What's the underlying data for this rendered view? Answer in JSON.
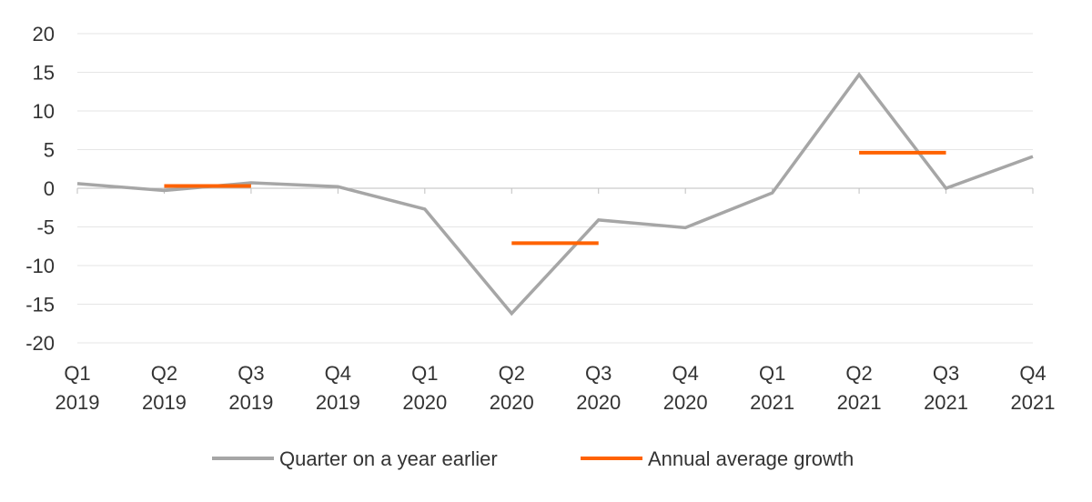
{
  "chart_data": {
    "type": "line",
    "categories": [
      [
        "Q1",
        "2019"
      ],
      [
        "Q2",
        "2019"
      ],
      [
        "Q3",
        "2019"
      ],
      [
        "Q4",
        "2019"
      ],
      [
        "Q1",
        "2020"
      ],
      [
        "Q2",
        "2020"
      ],
      [
        "Q3",
        "2020"
      ],
      [
        "Q4",
        "2020"
      ],
      [
        "Q1",
        "2021"
      ],
      [
        "Q2",
        "2021"
      ],
      [
        "Q3",
        "2021"
      ],
      [
        "Q4",
        "2021"
      ]
    ],
    "ylim": [
      -20,
      20
    ],
    "yticks": [
      -20,
      -15,
      -10,
      -5,
      0,
      5,
      10,
      15,
      20
    ],
    "grid": true,
    "legend_position": "bottom",
    "series": [
      {
        "name": "Quarter on a year earlier",
        "kind": "line",
        "color": "#a6a6a6",
        "values": [
          0.6,
          -0.3,
          0.7,
          0.2,
          -2.7,
          -16.2,
          -4.1,
          -5.1,
          -0.6,
          14.7,
          0.0,
          4.1
        ]
      },
      {
        "name": "Annual average growth",
        "kind": "step",
        "color": "#ff6200",
        "segments": [
          {
            "from": 1,
            "to": 2,
            "value": 0.3
          },
          {
            "from": 5,
            "to": 6,
            "value": -7.1
          },
          {
            "from": 9,
            "to": 10,
            "value": 4.6
          }
        ]
      }
    ]
  }
}
